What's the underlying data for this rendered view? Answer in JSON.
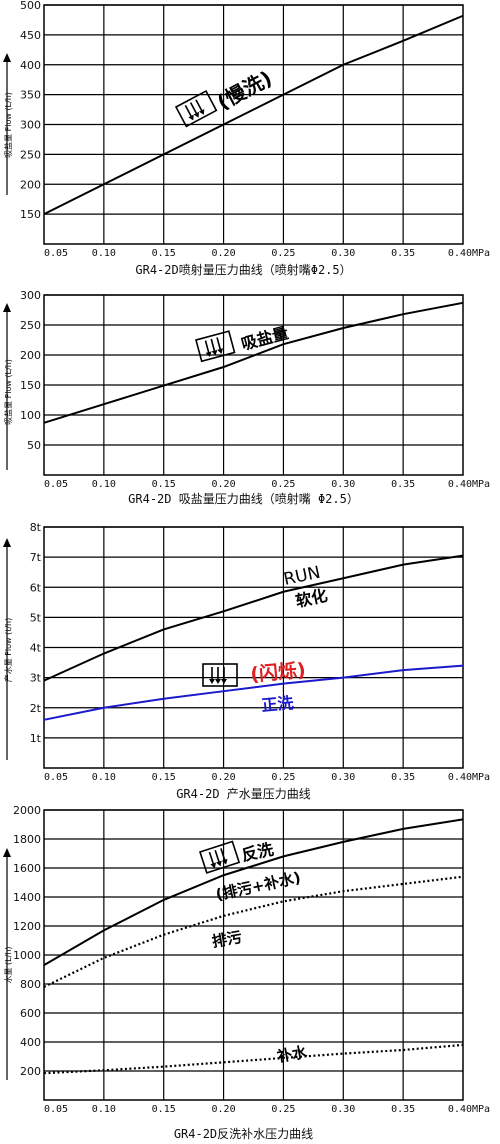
{
  "chart_data": [
    {
      "type": "line",
      "title": "GR4-2D喷射量压力曲线（喷射嘴Φ2.5）",
      "ylabel": "吸盐量 Flow (L/h)",
      "xlim": [
        0.05,
        0.4
      ],
      "ylim": [
        100,
        500
      ],
      "y_ticks": [
        "150",
        "200",
        "250",
        "300",
        "350",
        "400",
        "450",
        "500"
      ],
      "x_ticks": [
        "0.05",
        "0.10",
        "0.15",
        "0.20",
        "0.25",
        "0.30",
        "0.35",
        "0.40MPa"
      ],
      "series": [
        {
          "x": [
            0.05,
            0.1,
            0.15,
            0.2,
            0.25,
            0.3,
            0.35,
            0.4
          ],
          "y": [
            150,
            200,
            250,
            300,
            350,
            400,
            440,
            482
          ],
          "color": "#000000"
        }
      ],
      "annotations": [
        {
          "text": "(慢洗)",
          "color": "#000000"
        }
      ]
    },
    {
      "type": "line",
      "title": "GR4-2D 吸盐量压力曲线（喷射嘴 Φ2.5）",
      "ylabel": "吸盐量 Flow (L/h)",
      "xlim": [
        0.05,
        0.4
      ],
      "ylim": [
        0,
        300
      ],
      "y_ticks": [
        "50",
        "100",
        "150",
        "200",
        "250",
        "300"
      ],
      "x_ticks": [
        "0.05",
        "0.10",
        "0.15",
        "0.20",
        "0.25",
        "0.30",
        "0.35",
        "0.40MPa"
      ],
      "series": [
        {
          "x": [
            0.05,
            0.1,
            0.15,
            0.2,
            0.25,
            0.3,
            0.35,
            0.4
          ],
          "y": [
            87,
            118,
            149,
            180,
            218,
            245,
            268,
            287
          ],
          "color": "#000000"
        }
      ],
      "annotations": [
        {
          "text": "吸盐量",
          "color": "#000000"
        }
      ]
    },
    {
      "type": "line",
      "title": "GR4-2D 产水量压力曲线",
      "ylabel": "产水量 Flow (t/h)",
      "xlim": [
        0.05,
        0.4
      ],
      "ylim": [
        0,
        8
      ],
      "y_ticks": [
        "1t",
        "2t",
        "3t",
        "4t",
        "5t",
        "6t",
        "7t",
        "8t"
      ],
      "x_ticks": [
        "0.05",
        "0.10",
        "0.15",
        "0.20",
        "0.25",
        "0.30",
        "0.35",
        "0.40MPa"
      ],
      "series": [
        {
          "x": [
            0.05,
            0.1,
            0.15,
            0.2,
            0.25,
            0.3,
            0.35,
            0.4
          ],
          "y": [
            2.9,
            3.8,
            4.6,
            5.2,
            5.85,
            6.3,
            6.75,
            7.05
          ],
          "color": "#000000"
        },
        {
          "x": [
            0.05,
            0.1,
            0.15,
            0.2,
            0.25,
            0.3,
            0.35,
            0.4
          ],
          "y": [
            1.6,
            2.0,
            2.3,
            2.55,
            2.8,
            3.0,
            3.25,
            3.4
          ],
          "color": "#1a1acc"
        }
      ],
      "annotations": [
        {
          "text": "RUN",
          "color": "#000000"
        },
        {
          "text": "软化",
          "color": "#000000"
        },
        {
          "text": "(闪烁)",
          "color": "#e02020"
        },
        {
          "text": "正洗",
          "color": "#1a1acc"
        }
      ]
    },
    {
      "type": "line",
      "title": "GR4-2D反洗补水压力曲线",
      "ylabel": "水量 (L/h)",
      "xlim": [
        0.05,
        0.4
      ],
      "ylim": [
        0,
        2000
      ],
      "y_ticks": [
        "200",
        "400",
        "600",
        "800",
        "1000",
        "1200",
        "1400",
        "1600",
        "1800",
        "2000"
      ],
      "x_ticks": [
        "0.05",
        "0.10",
        "0.15",
        "0.20",
        "0.25",
        "0.30",
        "0.35",
        "0.40MPa"
      ],
      "series": [
        {
          "x": [
            0.05,
            0.1,
            0.15,
            0.2,
            0.25,
            0.3,
            0.35,
            0.4
          ],
          "y": [
            930,
            1170,
            1380,
            1550,
            1680,
            1780,
            1870,
            1935
          ],
          "color": "#000000",
          "style": "solid"
        },
        {
          "x": [
            0.05,
            0.1,
            0.15,
            0.2,
            0.25,
            0.3,
            0.35,
            0.4
          ],
          "y": [
            780,
            980,
            1140,
            1270,
            1370,
            1440,
            1490,
            1540
          ],
          "color": "#000000",
          "style": "dotted"
        },
        {
          "x": [
            0.05,
            0.1,
            0.15,
            0.2,
            0.25,
            0.3,
            0.35,
            0.4
          ],
          "y": [
            185,
            205,
            230,
            260,
            290,
            320,
            345,
            380
          ],
          "color": "#000000",
          "style": "dotted"
        }
      ],
      "annotations": [
        {
          "text": "反洗",
          "color": "#000000"
        },
        {
          "text": "(排污+补水)",
          "color": "#000000"
        },
        {
          "text": "排污",
          "color": "#000000"
        },
        {
          "text": "补水",
          "color": "#000000"
        }
      ]
    }
  ]
}
